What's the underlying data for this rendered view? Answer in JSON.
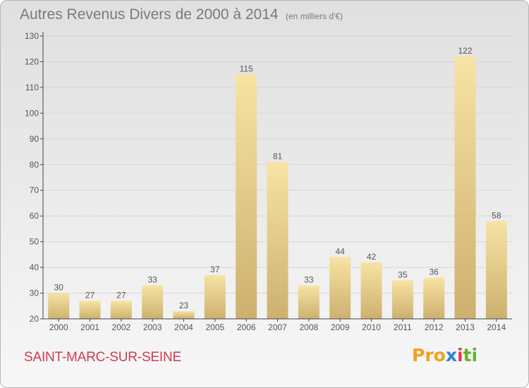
{
  "title": "Autres Revenus Divers de 2000 à 2014",
  "subtitle": "(en milliers d'€)",
  "commune": "SAINT-MARC-SUR-SEINE",
  "logo": {
    "part1": "Pro",
    "part2": "x",
    "part3": "i",
    "part4": "ti"
  },
  "colors": {
    "bar_light": "#f7e3a3",
    "bar_dark": "#cdb06f",
    "axis": "#444444",
    "grid": "#d6d6d6",
    "text": "#555555",
    "title": "#7a7a7a",
    "commune": "#cf3a50"
  },
  "chart_data": {
    "type": "bar",
    "title": "Autres Revenus Divers de 2000 à 2014",
    "xlabel": "",
    "ylabel": "",
    "categories": [
      "2000",
      "2001",
      "2002",
      "2003",
      "2004",
      "2005",
      "2006",
      "2007",
      "2008",
      "2009",
      "2010",
      "2011",
      "2012",
      "2013",
      "2014"
    ],
    "values": [
      30,
      27,
      27,
      33,
      23,
      37,
      115,
      81,
      33,
      44,
      42,
      35,
      36,
      122,
      58
    ],
    "ylim": [
      20,
      130
    ],
    "yticks": [
      20,
      30,
      40,
      50,
      60,
      70,
      80,
      90,
      100,
      110,
      120,
      130
    ],
    "grid": true,
    "data_labels": true
  }
}
